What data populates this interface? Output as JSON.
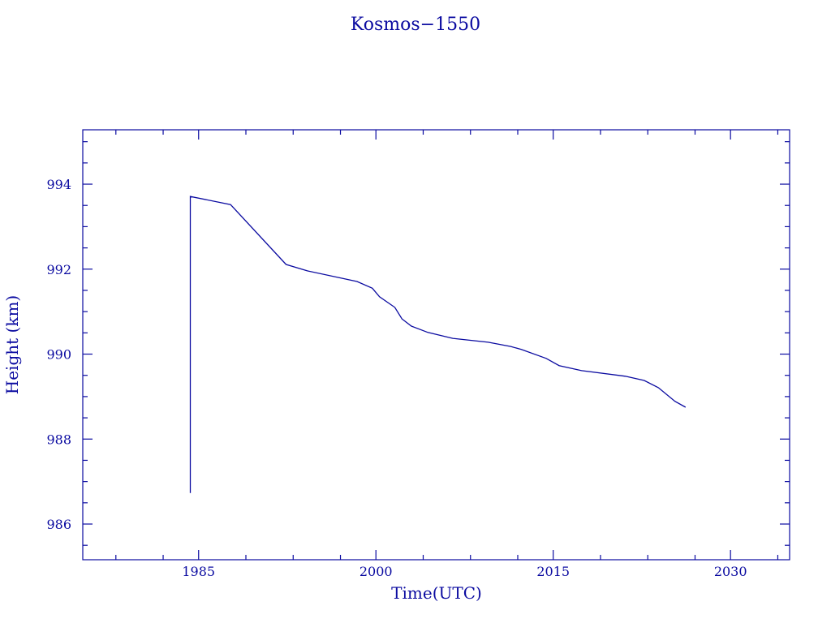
{
  "chart_data": {
    "type": "line",
    "title": "Kosmos−1550",
    "xlabel": "Time(UTC)",
    "ylabel": "Height (km)",
    "xlim": [
      1975.2,
      2035.0
    ],
    "ylim": [
      985.16,
      995.28
    ],
    "x_ticks": [
      1985,
      2000,
      2015,
      2030
    ],
    "x_tick_labels": [
      "1985",
      "2000",
      "2015",
      "2030"
    ],
    "x_minor_ticks": [
      1978,
      1982,
      1989,
      1993,
      1997,
      2004,
      2008,
      2012,
      2019,
      2023,
      2027,
      2034
    ],
    "y_ticks": [
      986,
      988,
      990,
      992,
      994
    ],
    "y_tick_labels": [
      "986",
      "988",
      "990",
      "992",
      "994"
    ],
    "y_minor_step": 0.5,
    "grid": false,
    "color": "#0a0aa0",
    "series": [
      {
        "name": "Height",
        "x": [
          1984.3,
          1984.3,
          1987.7,
          1992.4,
          1994.2,
          1998.4,
          1999.7,
          2000.3,
          2001.6,
          2002.2,
          2003.0,
          2004.4,
          2006.5,
          2009.5,
          2011.4,
          2012.3,
          2014.4,
          2015.5,
          2017.4,
          2021.1,
          2022.7,
          2023.9,
          2025.3,
          2026.2
        ],
        "y": [
          986.73,
          993.71,
          993.52,
          992.11,
          991.96,
          991.71,
          991.55,
          991.35,
          991.1,
          990.83,
          990.66,
          990.51,
          990.37,
          990.28,
          990.18,
          990.11,
          989.9,
          989.73,
          989.61,
          989.48,
          989.38,
          989.21,
          988.89,
          988.75
        ]
      }
    ]
  }
}
